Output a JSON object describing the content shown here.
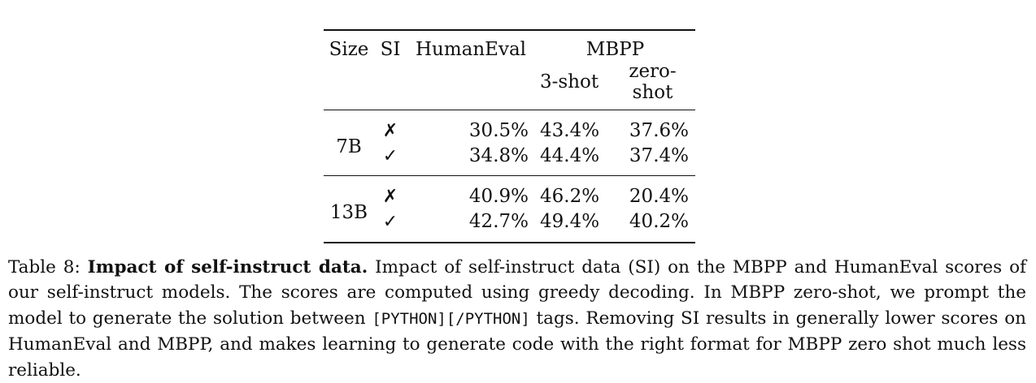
{
  "table": {
    "headers": {
      "size": "Size",
      "si": "SI",
      "humaneval": "HumanEval",
      "mbpp": "MBPP",
      "three_shot": "3-shot",
      "zero_shot": "zero-shot"
    },
    "groups": [
      {
        "size": "7B",
        "rows": [
          {
            "si": "✗",
            "humaneval": "30.5%",
            "three_shot": "43.4%",
            "zero_shot": "37.6%"
          },
          {
            "si": "✓",
            "humaneval": "34.8%",
            "three_shot": "44.4%",
            "zero_shot": "37.4%"
          }
        ]
      },
      {
        "size": "13B",
        "rows": [
          {
            "si": "✗",
            "humaneval": "40.9%",
            "three_shot": "46.2%",
            "zero_shot": "20.4%"
          },
          {
            "si": "✓",
            "humaneval": "42.7%",
            "three_shot": "49.4%",
            "zero_shot": "40.2%"
          }
        ]
      }
    ]
  },
  "caption": {
    "label": "Table 8:",
    "bold": "Impact of self-instruct data.",
    "part1": "Impact of self-instruct data (SI) on the MBPP and HumanEval scores of our self-instruct models. The scores are computed using greedy decoding. In MBPP zero-shot, we prompt the model to generate the solution between",
    "code": "[PYTHON][/PYTHON]",
    "part2": "tags. Removing SI results in generally lower scores on HumanEval and MBPP, and makes learning to generate code with the right format for MBPP zero shot much less reliable."
  }
}
